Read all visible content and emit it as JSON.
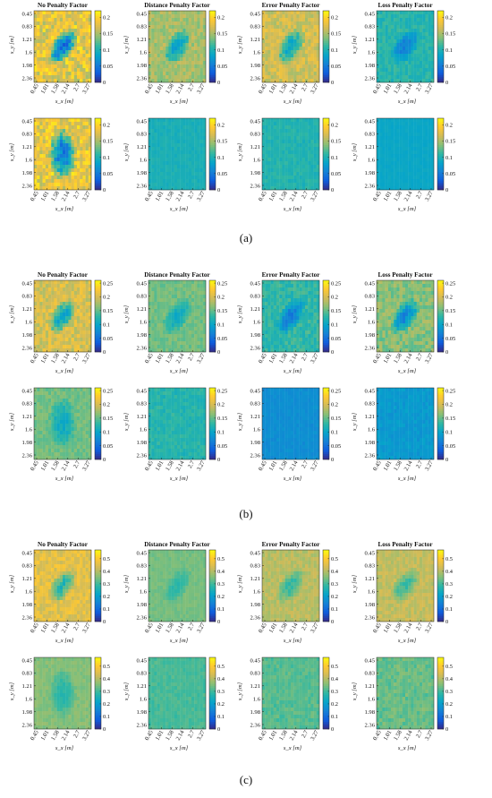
{
  "figure": {
    "captions": [
      "(a)",
      "(b)",
      "(c)"
    ]
  },
  "axes": {
    "ylabel": "s_y [m]",
    "xlabel": "s_x [m]",
    "yticks": [
      "0.45",
      "0.83",
      "1.21",
      "1.6",
      "1.98",
      "2.36"
    ],
    "xticks": [
      "0.45",
      "1.01",
      "1.58",
      "2.14",
      "2.7",
      "3.27"
    ]
  },
  "colors": {
    "colormap": "parula",
    "stops": [
      "#352a87",
      "#0f5cdd",
      "#1481d6",
      "#06a4ca",
      "#2eb7a4",
      "#87bf77",
      "#d1bb59",
      "#fec832",
      "#f9fb0e"
    ]
  },
  "chart_data": [
    {
      "type": "heatmap",
      "group": "a",
      "row": 1,
      "title": "No Penalty Factor",
      "colorbar": {
        "min": 0,
        "max": 0.22,
        "ticks": [
          "0",
          "0.05",
          "0.1",
          "0.15",
          "0.2"
        ]
      },
      "pattern": "diag_bowl",
      "base": 0.08,
      "amp": 0.14
    },
    {
      "type": "heatmap",
      "group": "a",
      "row": 1,
      "title": "Distance Penalty Factor",
      "colorbar": {
        "min": 0,
        "max": 0.22,
        "ticks": [
          "0",
          "0.05",
          "0.1",
          "0.15",
          "0.2"
        ]
      },
      "pattern": "diag_bowl",
      "base": 0.1,
      "amp": 0.07
    },
    {
      "type": "heatmap",
      "group": "a",
      "row": 1,
      "title": "Error Penalty Factor",
      "colorbar": {
        "min": 0,
        "max": 0.22,
        "ticks": [
          "0",
          "0.05",
          "0.1",
          "0.15",
          "0.2"
        ]
      },
      "pattern": "diag_bowl",
      "base": 0.11,
      "amp": 0.08
    },
    {
      "type": "heatmap",
      "group": "a",
      "row": 1,
      "title": "Loss Penalty Factor",
      "colorbar": {
        "min": 0,
        "max": 0.22,
        "ticks": [
          "0",
          "0.05",
          "0.1",
          "0.15",
          "0.2"
        ]
      },
      "pattern": "diag_bowl",
      "base": 0.07,
      "amp": 0.05
    },
    {
      "type": "heatmap",
      "group": "a",
      "row": 2,
      "title": "",
      "colorbar": {
        "min": 0,
        "max": 0.22,
        "ticks": [
          "0",
          "0.05",
          "0.1",
          "0.15",
          "0.2"
        ]
      },
      "pattern": "vert_bowl",
      "base": 0.09,
      "amp": 0.13
    },
    {
      "type": "heatmap",
      "group": "a",
      "row": 2,
      "title": "",
      "colorbar": {
        "min": 0,
        "max": 0.22,
        "ticks": [
          "0",
          "0.05",
          "0.1",
          "0.15",
          "0.2"
        ]
      },
      "pattern": "flat",
      "base": 0.095,
      "amp": 0.01
    },
    {
      "type": "heatmap",
      "group": "a",
      "row": 2,
      "title": "",
      "colorbar": {
        "min": 0,
        "max": 0.22,
        "ticks": [
          "0",
          "0.05",
          "0.1",
          "0.15",
          "0.2"
        ]
      },
      "pattern": "flat",
      "base": 0.1,
      "amp": 0.015
    },
    {
      "type": "heatmap",
      "group": "a",
      "row": 2,
      "title": "",
      "colorbar": {
        "min": 0,
        "max": 0.22,
        "ticks": [
          "0",
          "0.05",
          "0.1",
          "0.15",
          "0.2"
        ]
      },
      "pattern": "flat",
      "base": 0.085,
      "amp": 0.005
    },
    {
      "type": "heatmap",
      "group": "b",
      "row": 1,
      "title": "No Penalty Factor",
      "colorbar": {
        "min": 0,
        "max": 0.26,
        "ticks": [
          "0",
          "0.05",
          "0.1",
          "0.15",
          "0.2",
          "0.25"
        ]
      },
      "pattern": "diag_bowl",
      "base": 0.13,
      "amp": 0.1
    },
    {
      "type": "heatmap",
      "group": "b",
      "row": 1,
      "title": "Distance Penalty Factor",
      "colorbar": {
        "min": 0,
        "max": 0.26,
        "ticks": [
          "0",
          "0.05",
          "0.1",
          "0.15",
          "0.2",
          "0.25"
        ]
      },
      "pattern": "diag_bowl",
      "base": 0.12,
      "amp": 0.05
    },
    {
      "type": "heatmap",
      "group": "b",
      "row": 1,
      "title": "Error Penalty Factor",
      "colorbar": {
        "min": 0,
        "max": 0.26,
        "ticks": [
          "0",
          "0.05",
          "0.1",
          "0.15",
          "0.2",
          "0.25"
        ]
      },
      "pattern": "diag_bowl",
      "base": 0.08,
      "amp": 0.07
    },
    {
      "type": "heatmap",
      "group": "b",
      "row": 1,
      "title": "Loss Penalty Factor",
      "colorbar": {
        "min": 0,
        "max": 0.26,
        "ticks": [
          "0",
          "0.05",
          "0.1",
          "0.15",
          "0.2",
          "0.25"
        ]
      },
      "pattern": "diag_bowl",
      "base": 0.1,
      "amp": 0.09
    },
    {
      "type": "heatmap",
      "group": "b",
      "row": 2,
      "title": "",
      "colorbar": {
        "min": 0,
        "max": 0.26,
        "ticks": [
          "0",
          "0.05",
          "0.1",
          "0.15",
          "0.2",
          "0.25"
        ]
      },
      "pattern": "vert_bowl",
      "base": 0.12,
      "amp": 0.05
    },
    {
      "type": "heatmap",
      "group": "b",
      "row": 2,
      "title": "",
      "colorbar": {
        "min": 0,
        "max": 0.26,
        "ticks": [
          "0",
          "0.05",
          "0.1",
          "0.15",
          "0.2",
          "0.25"
        ]
      },
      "pattern": "flat",
      "base": 0.12,
      "amp": 0.02
    },
    {
      "type": "heatmap",
      "group": "b",
      "row": 2,
      "title": "",
      "colorbar": {
        "min": 0,
        "max": 0.26,
        "ticks": [
          "0",
          "0.05",
          "0.1",
          "0.15",
          "0.2",
          "0.25"
        ]
      },
      "pattern": "flat",
      "base": 0.075,
      "amp": 0.01
    },
    {
      "type": "heatmap",
      "group": "b",
      "row": 2,
      "title": "",
      "colorbar": {
        "min": 0,
        "max": 0.26,
        "ticks": [
          "0",
          "0.05",
          "0.1",
          "0.15",
          "0.2",
          "0.25"
        ]
      },
      "pattern": "flat",
      "base": 0.085,
      "amp": 0.015
    },
    {
      "type": "heatmap",
      "group": "c",
      "row": 1,
      "title": "No Penalty Factor",
      "colorbar": {
        "min": 0,
        "max": 0.57,
        "ticks": [
          "0",
          "0.1",
          "0.2",
          "0.3",
          "0.4",
          "0.5"
        ]
      },
      "pattern": "diag_bowl",
      "base": 0.33,
      "amp": 0.18
    },
    {
      "type": "heatmap",
      "group": "c",
      "row": 1,
      "title": "Distance Penalty Factor",
      "colorbar": {
        "min": 0,
        "max": 0.57,
        "ticks": [
          "0",
          "0.1",
          "0.2",
          "0.3",
          "0.4",
          "0.5"
        ]
      },
      "pattern": "diag_bowl",
      "base": 0.3,
      "amp": 0.06
    },
    {
      "type": "heatmap",
      "group": "c",
      "row": 1,
      "title": "Error Penalty Factor",
      "colorbar": {
        "min": 0,
        "max": 0.57,
        "ticks": [
          "0",
          "0.1",
          "0.2",
          "0.3",
          "0.4",
          "0.5"
        ]
      },
      "pattern": "diag_bowl",
      "base": 0.32,
      "amp": 0.12
    },
    {
      "type": "heatmap",
      "group": "c",
      "row": 1,
      "title": "Loss Penalty Factor",
      "colorbar": {
        "min": 0,
        "max": 0.57,
        "ticks": [
          "0",
          "0.1",
          "0.2",
          "0.3",
          "0.4",
          "0.5"
        ]
      },
      "pattern": "diag_bowl",
      "base": 0.33,
      "amp": 0.12
    },
    {
      "type": "heatmap",
      "group": "c",
      "row": 2,
      "title": "",
      "colorbar": {
        "min": 0,
        "max": 0.57,
        "ticks": [
          "0",
          "0.1",
          "0.2",
          "0.3",
          "0.4",
          "0.5"
        ]
      },
      "pattern": "vert_bowl",
      "base": 0.3,
      "amp": 0.08
    },
    {
      "type": "heatmap",
      "group": "c",
      "row": 2,
      "title": "",
      "colorbar": {
        "min": 0,
        "max": 0.57,
        "ticks": [
          "0",
          "0.1",
          "0.2",
          "0.3",
          "0.4",
          "0.5"
        ]
      },
      "pattern": "flat",
      "base": 0.3,
      "amp": 0.03
    },
    {
      "type": "heatmap",
      "group": "c",
      "row": 2,
      "title": "",
      "colorbar": {
        "min": 0,
        "max": 0.57,
        "ticks": [
          "0",
          "0.1",
          "0.2",
          "0.3",
          "0.4",
          "0.5"
        ]
      },
      "pattern": "flat",
      "base": 0.31,
      "amp": 0.04
    },
    {
      "type": "heatmap",
      "group": "c",
      "row": 2,
      "title": "",
      "colorbar": {
        "min": 0,
        "max": 0.57,
        "ticks": [
          "0",
          "0.1",
          "0.2",
          "0.3",
          "0.4",
          "0.5"
        ]
      },
      "pattern": "flat",
      "base": 0.32,
      "amp": 0.05
    }
  ]
}
